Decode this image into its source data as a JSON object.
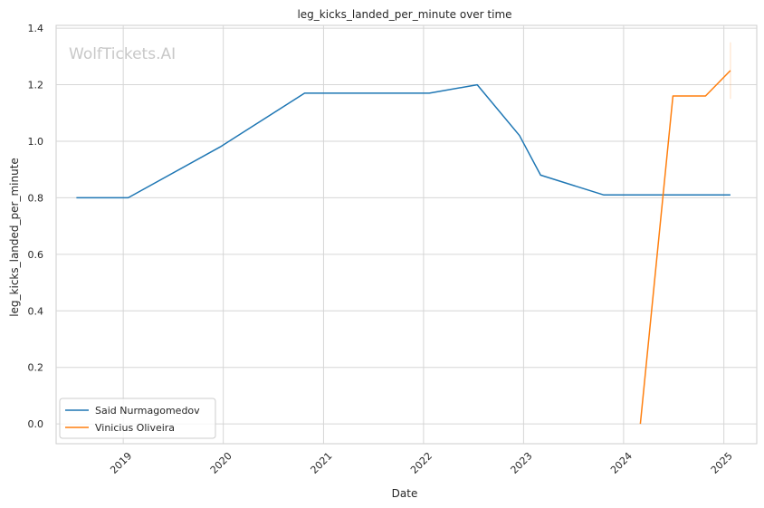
{
  "chart_data": {
    "type": "line",
    "title": "leg_kicks_landed_per_minute over time",
    "xlabel": "Date",
    "ylabel": "leg_kicks_landed_per_minute",
    "watermark": "WolfTickets.AI",
    "xlim": [
      "2018-05-01",
      "2025-05-01"
    ],
    "ylim": [
      -0.07,
      1.41
    ],
    "x_ticks": [
      "2019",
      "2020",
      "2021",
      "2022",
      "2023",
      "2024",
      "2025"
    ],
    "y_ticks": [
      "0.0",
      "0.2",
      "0.4",
      "0.6",
      "0.8",
      "1.0",
      "1.2",
      "1.4"
    ],
    "grid": true,
    "legend_position": "lower-left",
    "series": [
      {
        "name": "Said Nurmagomedov",
        "color": "#1f77b4",
        "points": [
          {
            "x": "2018-07-14",
            "y": 0.8
          },
          {
            "x": "2019-01-19",
            "y": 0.8
          },
          {
            "x": "2019-12-21",
            "y": 0.98
          },
          {
            "x": "2020-10-24",
            "y": 1.17
          },
          {
            "x": "2022-01-22",
            "y": 1.17
          },
          {
            "x": "2022-07-16",
            "y": 1.2
          },
          {
            "x": "2022-12-17",
            "y": 1.02
          },
          {
            "x": "2023-03-04",
            "y": 0.88
          },
          {
            "x": "2023-10-21",
            "y": 0.81
          },
          {
            "x": "2025-01-25",
            "y": 0.81
          }
        ]
      },
      {
        "name": "Vinicius Oliveira",
        "color": "#ff7f0e",
        "points": [
          {
            "x": "2024-03-02",
            "y": 0.0
          },
          {
            "x": "2024-06-29",
            "y": 1.16
          },
          {
            "x": "2024-10-26",
            "y": 1.16
          },
          {
            "x": "2025-01-25",
            "y": 1.25
          }
        ]
      }
    ]
  }
}
